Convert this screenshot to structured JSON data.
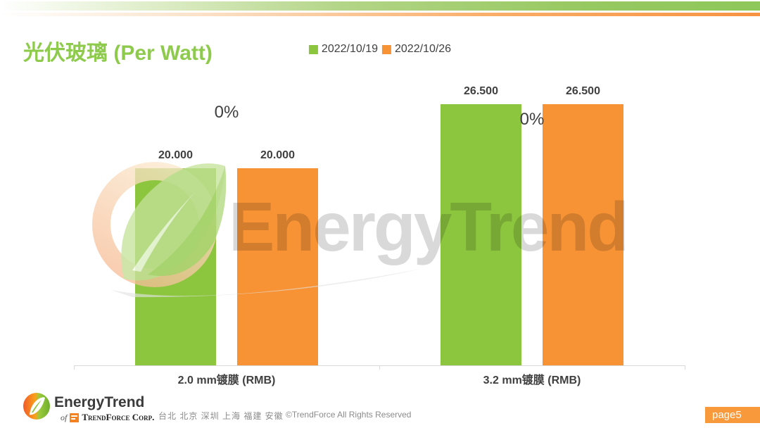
{
  "slide": {
    "title": "光伏玻璃 (Per Watt)",
    "page_label": "page5"
  },
  "legend": [
    {
      "label": "2022/10/19",
      "color": "#8CC63E"
    },
    {
      "label": "2022/10/26",
      "color": "#F79334"
    }
  ],
  "chart_data": {
    "type": "bar",
    "title": "光伏玻璃 (Per Watt)",
    "categories": [
      "2.0 mm镀膜 (RMB)",
      "3.2 mm镀膜 (RMB)"
    ],
    "series": [
      {
        "name": "2022/10/19",
        "color": "#8CC63E",
        "values": [
          20.0,
          26.5
        ],
        "data_labels": [
          "20.000",
          "26.500"
        ]
      },
      {
        "name": "2022/10/26",
        "color": "#F79334",
        "values": [
          20.0,
          26.5
        ],
        "data_labels": [
          "20.000",
          "26.500"
        ]
      }
    ],
    "change_labels": [
      "0%",
      "0%"
    ],
    "ylim": [
      0,
      30
    ],
    "grid": false,
    "legend_position": "top",
    "axis_line_color": "#D9D9D9",
    "value_label_color": "#404040"
  },
  "watermark": {
    "text": "EnergyTrend"
  },
  "footer": {
    "logo_text": "EnergyTrend",
    "logo_sub_prefix": "of",
    "logo_sub_text": "TrendForce Corp.",
    "cities": "台北 北京 深圳 上海 福建 安徽",
    "copyright": "©TrendForce All Rights Reserved"
  },
  "colors": {
    "title_green": "#8ECB4D",
    "top_band_green": "#8EC75A",
    "top_line_orange": "#F79343",
    "page_badge_orange": "#F8993B",
    "watermark_gray": "#D9D9D9"
  }
}
